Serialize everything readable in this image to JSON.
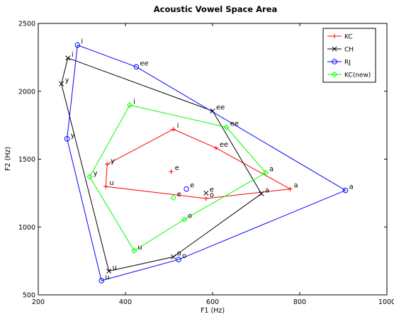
{
  "chart_data": {
    "type": "line",
    "title": "Acoustic Vowel Space Area",
    "xlabel": "F1 (Hz)",
    "ylabel": "F2 (Hz)",
    "xlim": [
      200,
      1000
    ],
    "ylim": [
      500,
      2500
    ],
    "xticks": [
      200,
      400,
      600,
      800,
      1000
    ],
    "yticks": [
      500,
      1000,
      1500,
      2000,
      2500
    ],
    "grid": false,
    "legend_position": "top-right",
    "series": [
      {
        "name": "KC",
        "color": "#ff0000",
        "marker": "plus",
        "closed": true,
        "points": [
          {
            "label": "i",
            "x": 510,
            "y": 1720
          },
          {
            "label": "ee",
            "x": 608,
            "y": 1582
          },
          {
            "label": "a",
            "x": 778,
            "y": 1280
          },
          {
            "label": "o",
            "x": 585,
            "y": 1210
          },
          {
            "label": "u",
            "x": 355,
            "y": 1298
          },
          {
            "label": "y",
            "x": 358,
            "y": 1462
          }
        ],
        "extra_points": [
          {
            "label": "e",
            "x": 505,
            "y": 1408
          }
        ]
      },
      {
        "name": "CH",
        "color": "#000000",
        "marker": "x",
        "closed": true,
        "points": [
          {
            "label": "i",
            "x": 268,
            "y": 2245
          },
          {
            "label": "ee",
            "x": 600,
            "y": 1855
          },
          {
            "label": "a",
            "x": 712,
            "y": 1245
          },
          {
            "label": "o",
            "x": 510,
            "y": 780
          },
          {
            "label": "u",
            "x": 362,
            "y": 675
          },
          {
            "label": "y",
            "x": 253,
            "y": 2055
          }
        ],
        "extra_points": [
          {
            "label": "e",
            "x": 585,
            "y": 1250
          }
        ]
      },
      {
        "name": "RJ",
        "color": "#0000ff",
        "marker": "circle",
        "closed": true,
        "points": [
          {
            "label": "i",
            "x": 290,
            "y": 2340
          },
          {
            "label": "ee",
            "x": 425,
            "y": 2180
          },
          {
            "label": "a",
            "x": 905,
            "y": 1270
          },
          {
            "label": "o",
            "x": 522,
            "y": 760
          },
          {
            "label": "u",
            "x": 345,
            "y": 605
          },
          {
            "label": "y",
            "x": 266,
            "y": 1650
          }
        ],
        "extra_points": [
          {
            "label": "e",
            "x": 540,
            "y": 1280
          }
        ]
      },
      {
        "name": "KC(new)",
        "color": "#00ff00",
        "marker": "diamond",
        "closed": true,
        "points": [
          {
            "label": "i",
            "x": 410,
            "y": 1898
          },
          {
            "label": "ee",
            "x": 632,
            "y": 1735
          },
          {
            "label": "a",
            "x": 722,
            "y": 1400
          },
          {
            "label": "o",
            "x": 535,
            "y": 1055
          },
          {
            "label": "u",
            "x": 420,
            "y": 825
          },
          {
            "label": "y",
            "x": 318,
            "y": 1370
          }
        ],
        "extra_points": [
          {
            "label": "e",
            "x": 510,
            "y": 1215
          }
        ]
      }
    ]
  }
}
